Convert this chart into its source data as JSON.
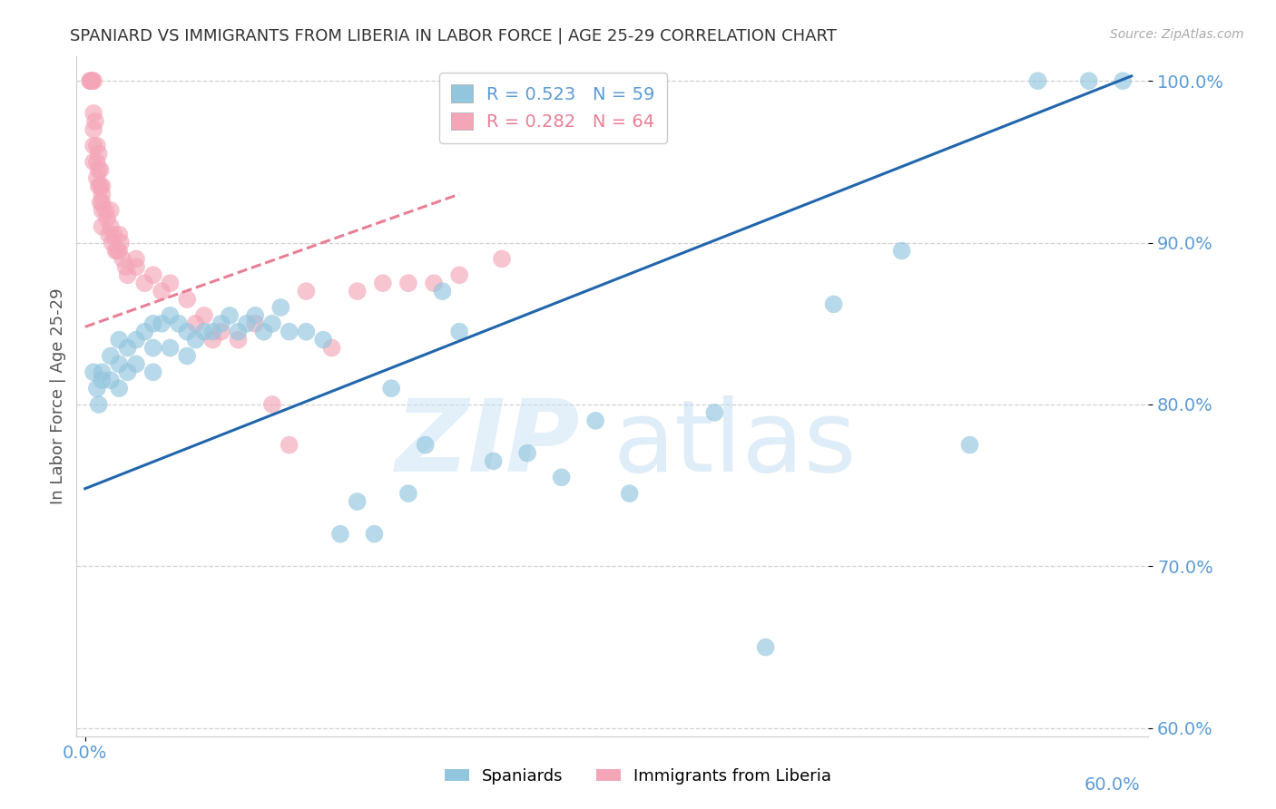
{
  "title": "SPANIARD VS IMMIGRANTS FROM LIBERIA IN LABOR FORCE | AGE 25-29 CORRELATION CHART",
  "source": "Source: ZipAtlas.com",
  "ylabel": "In Labor Force | Age 25-29",
  "xlim": [
    -0.005,
    0.625
  ],
  "ylim": [
    0.595,
    1.015
  ],
  "yticks": [
    0.6,
    0.7,
    0.8,
    0.9,
    1.0
  ],
  "ytick_labels": [
    "60.0%",
    "70.0%",
    "80.0%",
    "90.0%",
    "100.0%"
  ],
  "xtick_left_label": "0.0%",
  "xtick_right_label": "60.0%",
  "blue_color": "#92c5de",
  "pink_color": "#f4a6b8",
  "blue_line_color": "#2166ac",
  "pink_line_color": "#e87f96",
  "axis_tick_color": "#5b9bd5",
  "grid_color": "#d0d0d0",
  "title_color": "#333333",
  "watermark_zip": "ZIP",
  "watermark_atlas": "atlas",
  "legend_label_blue": "R = 0.523   N = 59",
  "legend_label_pink": "R = 0.282   N = 64",
  "legend_blue_color": "#5b9bd5",
  "legend_pink_color": "#e87f96",
  "blue_trend_x0": 0.0,
  "blue_trend_y0": 0.748,
  "blue_trend_x1": 0.615,
  "blue_trend_y1": 1.003,
  "pink_trend_x0": 0.0,
  "pink_trend_y0": 0.848,
  "pink_trend_x1": 0.22,
  "pink_trend_y1": 0.93,
  "blue_scatter_x": [
    0.005,
    0.007,
    0.008,
    0.01,
    0.01,
    0.015,
    0.015,
    0.02,
    0.02,
    0.02,
    0.025,
    0.025,
    0.03,
    0.03,
    0.035,
    0.04,
    0.04,
    0.04,
    0.045,
    0.05,
    0.05,
    0.055,
    0.06,
    0.06,
    0.065,
    0.07,
    0.075,
    0.08,
    0.085,
    0.09,
    0.095,
    0.1,
    0.105,
    0.11,
    0.115,
    0.12,
    0.13,
    0.14,
    0.15,
    0.16,
    0.17,
    0.18,
    0.19,
    0.2,
    0.21,
    0.22,
    0.24,
    0.26,
    0.28,
    0.3,
    0.32,
    0.37,
    0.4,
    0.44,
    0.48,
    0.52,
    0.56,
    0.59,
    0.61
  ],
  "blue_scatter_y": [
    0.82,
    0.81,
    0.8,
    0.82,
    0.815,
    0.83,
    0.815,
    0.84,
    0.825,
    0.81,
    0.835,
    0.82,
    0.84,
    0.825,
    0.845,
    0.85,
    0.835,
    0.82,
    0.85,
    0.855,
    0.835,
    0.85,
    0.845,
    0.83,
    0.84,
    0.845,
    0.845,
    0.85,
    0.855,
    0.845,
    0.85,
    0.855,
    0.845,
    0.85,
    0.86,
    0.845,
    0.845,
    0.84,
    0.72,
    0.74,
    0.72,
    0.81,
    0.745,
    0.775,
    0.87,
    0.845,
    0.765,
    0.77,
    0.755,
    0.79,
    0.745,
    0.795,
    0.65,
    0.862,
    0.895,
    0.775,
    1.0,
    1.0,
    1.0
  ],
  "pink_scatter_x": [
    0.003,
    0.003,
    0.004,
    0.004,
    0.004,
    0.004,
    0.005,
    0.005,
    0.005,
    0.005,
    0.005,
    0.006,
    0.007,
    0.007,
    0.007,
    0.008,
    0.008,
    0.008,
    0.009,
    0.009,
    0.009,
    0.01,
    0.01,
    0.01,
    0.01,
    0.01,
    0.012,
    0.013,
    0.014,
    0.015,
    0.015,
    0.016,
    0.017,
    0.018,
    0.019,
    0.02,
    0.02,
    0.021,
    0.022,
    0.024,
    0.025,
    0.03,
    0.03,
    0.035,
    0.04,
    0.045,
    0.05,
    0.06,
    0.065,
    0.07,
    0.075,
    0.08,
    0.09,
    0.1,
    0.11,
    0.12,
    0.13,
    0.145,
    0.16,
    0.175,
    0.19,
    0.205,
    0.22,
    0.245
  ],
  "pink_scatter_y": [
    1.0,
    1.0,
    1.0,
    1.0,
    1.0,
    1.0,
    1.0,
    0.98,
    0.97,
    0.96,
    0.95,
    0.975,
    0.96,
    0.95,
    0.94,
    0.955,
    0.945,
    0.935,
    0.945,
    0.935,
    0.925,
    0.935,
    0.93,
    0.925,
    0.92,
    0.91,
    0.92,
    0.915,
    0.905,
    0.92,
    0.91,
    0.9,
    0.905,
    0.895,
    0.895,
    0.905,
    0.895,
    0.9,
    0.89,
    0.885,
    0.88,
    0.89,
    0.885,
    0.875,
    0.88,
    0.87,
    0.875,
    0.865,
    0.85,
    0.855,
    0.84,
    0.845,
    0.84,
    0.85,
    0.8,
    0.775,
    0.87,
    0.835,
    0.87,
    0.875,
    0.875,
    0.875,
    0.88,
    0.89
  ]
}
